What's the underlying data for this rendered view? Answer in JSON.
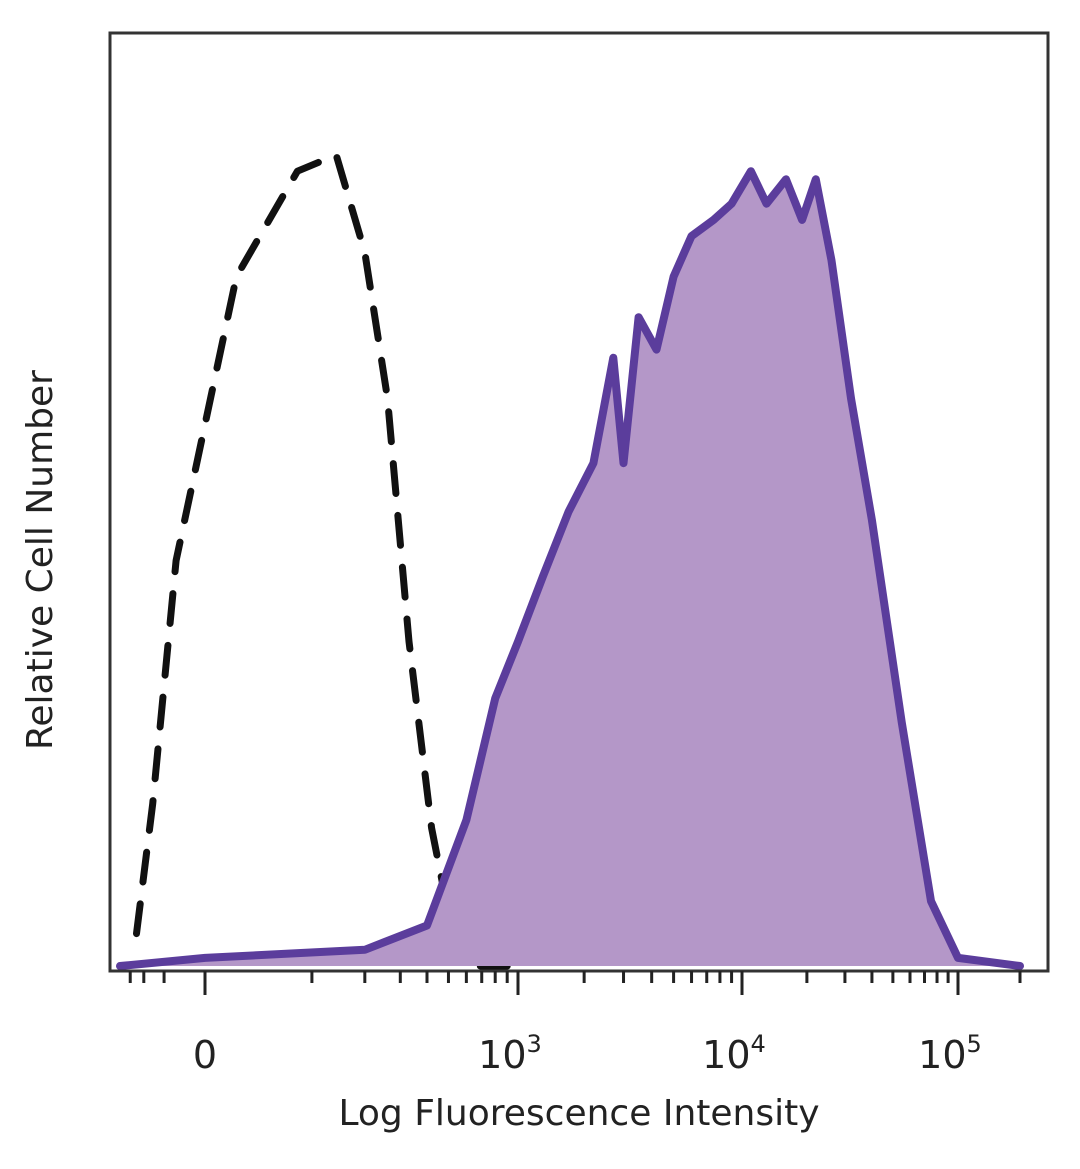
{
  "chart_data": {
    "type": "area",
    "xlabel": "Log Fluorescence Intensity",
    "ylabel": "Relative Cell Number",
    "x_scale": "biexponential (linear near 0, log above ~10^3)",
    "xlim": [
      -400,
      200000
    ],
    "ylim": [
      0,
      1.1
    ],
    "x_ticks": [
      {
        "base": "0",
        "exp": ""
      },
      {
        "base": "10",
        "exp": "3"
      },
      {
        "base": "10",
        "exp": "4"
      },
      {
        "base": "10",
        "exp": "5"
      }
    ],
    "y_ticks": [],
    "grid": false,
    "legend": "none",
    "series": [
      {
        "style": "dashed",
        "color": "#111111",
        "fill": false,
        "x": [
          -250,
          -150,
          -60,
          20,
          80,
          140,
          200,
          260,
          330,
          420,
          530,
          650,
          780,
          900
        ],
        "y": [
          0.04,
          0.2,
          0.5,
          0.85,
          0.98,
          1.0,
          0.88,
          0.7,
          0.4,
          0.17,
          0.03,
          0.0,
          0.0,
          0.0
        ]
      },
      {
        "style": "solid",
        "color": "#5b3d9c",
        "fill": true,
        "fill_color": "#b497c8",
        "x": [
          -400,
          0,
          200,
          400,
          600,
          800,
          1000,
          1300,
          1700,
          2200,
          2700,
          3000,
          3500,
          4200,
          5000,
          6000,
          7500,
          9000,
          11000,
          13000,
          16000,
          19000,
          22000,
          26000,
          32000,
          40000,
          55000,
          75000,
          100000,
          200000
        ],
        "y": [
          0.0,
          0.01,
          0.02,
          0.05,
          0.18,
          0.33,
          0.4,
          0.48,
          0.56,
          0.62,
          0.75,
          0.62,
          0.8,
          0.76,
          0.85,
          0.9,
          0.92,
          0.94,
          0.98,
          0.94,
          0.97,
          0.92,
          0.97,
          0.87,
          0.7,
          0.55,
          0.3,
          0.08,
          0.01,
          0.0
        ]
      }
    ]
  }
}
